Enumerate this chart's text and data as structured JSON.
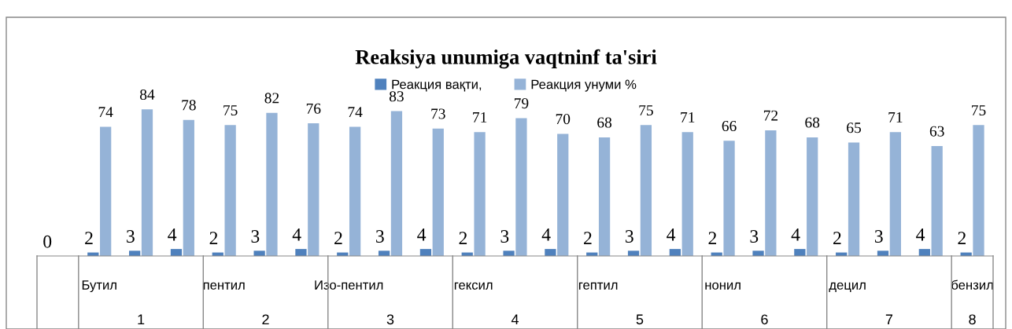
{
  "chart_data": {
    "type": "bar",
    "title": "Reaksiya unumiga vaqtninf ta'siri",
    "categories": [
      null,
      "Бутил",
      null,
      null,
      "пентил",
      null,
      null,
      "Изо-пентил",
      null,
      null,
      "гексил",
      null,
      null,
      "гептил",
      null,
      null,
      "нонил",
      null,
      null,
      "децил",
      null,
      null,
      "бензил"
    ],
    "series": [
      {
        "name": "Реакция вақти,",
        "color": "#4f81bd",
        "values": [
          0,
          2,
          3,
          4,
          2,
          3,
          4,
          2,
          3,
          4,
          2,
          3,
          4,
          2,
          3,
          4,
          2,
          3,
          4,
          2,
          3,
          4,
          2
        ]
      },
      {
        "name": "Реакция унуми %",
        "color": "#95b3d7",
        "values": [
          null,
          74,
          84,
          78,
          75,
          82,
          76,
          74,
          83,
          73,
          71,
          79,
          70,
          68,
          75,
          71,
          66,
          72,
          68,
          65,
          71,
          63,
          75
        ]
      }
    ],
    "annotations": [
      "1",
      "2",
      "3",
      "4",
      "5",
      "6",
      "7",
      "8"
    ],
    "data_labels": true,
    "legend": "top",
    "grid": false
  }
}
